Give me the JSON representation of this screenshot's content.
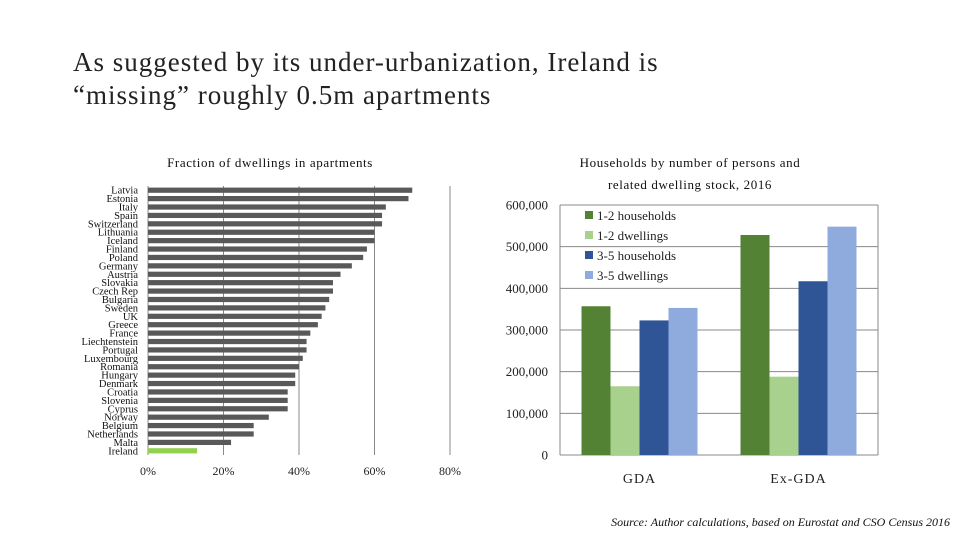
{
  "slide": {
    "title_line1": "As suggested by its under-urbanization, Ireland is",
    "title_line2": "“missing” roughly 0.5m apartments",
    "source": "Source: Author calculations, based on Eurostat and CSO Census 2016"
  },
  "colors": {
    "bar_dark": "#595959",
    "bar_highlight": "#92d050",
    "series": [
      "#548235",
      "#a9d18e",
      "#2f5597",
      "#8faadc"
    ]
  },
  "chart_data": [
    {
      "type": "bar",
      "orientation": "horizontal",
      "title": "Fraction of dwellings in apartments",
      "categories": [
        "Latvia",
        "Estonia",
        "Italy",
        "Spain",
        "Switzerland",
        "Lithuania",
        "Iceland",
        "Finland",
        "Poland",
        "Germany",
        "Austria",
        "Slovakia",
        "Czech Rep",
        "Bulgaria",
        "Sweden",
        "UK",
        "Greece",
        "France",
        "Liechtenstein",
        "Portugal",
        "Luxembourg",
        "Romania",
        "Hungary",
        "Denmark",
        "Croatia",
        "Slovenia",
        "Cyprus",
        "Norway",
        "Belgium",
        "Netherlands",
        "Malta",
        "Ireland"
      ],
      "values": [
        70,
        69,
        63,
        62,
        62,
        60,
        60,
        58,
        57,
        54,
        51,
        49,
        49,
        48,
        47,
        46,
        45,
        43,
        42,
        42,
        41,
        40,
        39,
        39,
        37,
        37,
        37,
        32,
        28,
        28,
        22,
        13
      ],
      "highlight": "Ireland",
      "xlim": [
        0,
        80
      ],
      "xticks": [
        0,
        20,
        40,
        60,
        80
      ],
      "xtick_labels": [
        "0%",
        "20%",
        "40%",
        "60%",
        "80%"
      ]
    },
    {
      "type": "bar",
      "title": "Households by number of persons and related dwelling stock, 2016",
      "title_line1": "Households by number of persons and",
      "title_line2": "related dwelling stock, 2016",
      "categories": [
        "GDA",
        "Ex-GDA"
      ],
      "series": [
        {
          "name": "1-2 households",
          "values": [
            357000,
            528000
          ]
        },
        {
          "name": "1-2 dwellings",
          "values": [
            165000,
            188000
          ]
        },
        {
          "name": "3-5 households",
          "values": [
            323000,
            417000
          ]
        },
        {
          "name": "3-5 dwellings",
          "values": [
            353000,
            548000
          ]
        }
      ],
      "ylim": [
        0,
        600000
      ],
      "yticks": [
        0,
        100000,
        200000,
        300000,
        400000,
        500000,
        600000
      ],
      "ytick_labels": [
        "0",
        "100,000",
        "200,000",
        "300,000",
        "400,000",
        "500,000",
        "600,000"
      ],
      "legend": "top-left inside"
    }
  ]
}
